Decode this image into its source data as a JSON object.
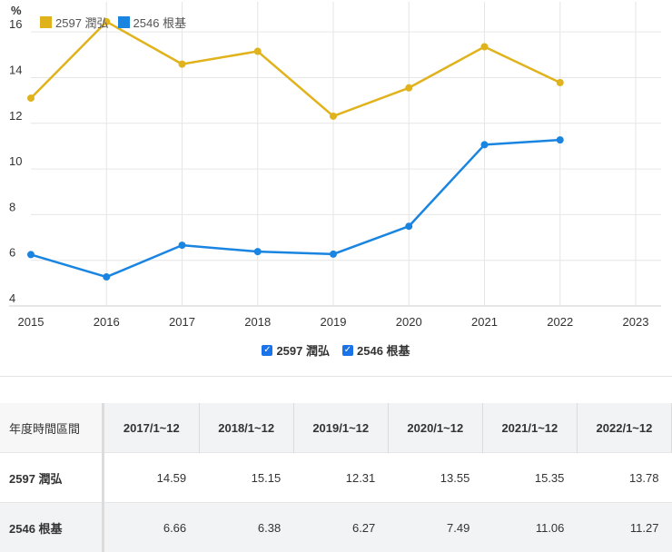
{
  "chart_data": {
    "type": "line",
    "ylabel": "%",
    "x": [
      2015,
      2016,
      2017,
      2018,
      2019,
      2020,
      2021,
      2022
    ],
    "x_ticks": [
      2015,
      2016,
      2017,
      2018,
      2019,
      2020,
      2021,
      2022,
      2023
    ],
    "y_ticks": [
      4,
      6,
      8,
      10,
      12,
      14,
      16
    ],
    "xlim": [
      2015,
      2023
    ],
    "ylim": [
      4,
      17
    ],
    "grid": true,
    "legend": "top-left",
    "series": [
      {
        "name": "2597 潤弘",
        "color": "#e0b21b",
        "values": [
          13.1,
          16.45,
          14.59,
          15.15,
          12.31,
          13.55,
          15.35,
          13.78
        ]
      },
      {
        "name": "2546 根基",
        "color": "#1a85e0",
        "values": [
          6.25,
          5.27,
          6.66,
          6.38,
          6.27,
          7.49,
          11.06,
          11.27
        ]
      }
    ]
  },
  "table": {
    "header_label": "年度時間區間",
    "columns": [
      "2017/1~12",
      "2018/1~12",
      "2019/1~12",
      "2020/1~12",
      "2021/1~12",
      "2022/1~12"
    ],
    "rows": [
      {
        "name": "2597 潤弘",
        "values": [
          "14.59",
          "15.15",
          "12.31",
          "13.55",
          "15.35",
          "13.78"
        ]
      },
      {
        "name": "2546 根基",
        "values": [
          "6.66",
          "6.38",
          "6.27",
          "7.49",
          "11.06",
          "11.27"
        ]
      }
    ]
  }
}
